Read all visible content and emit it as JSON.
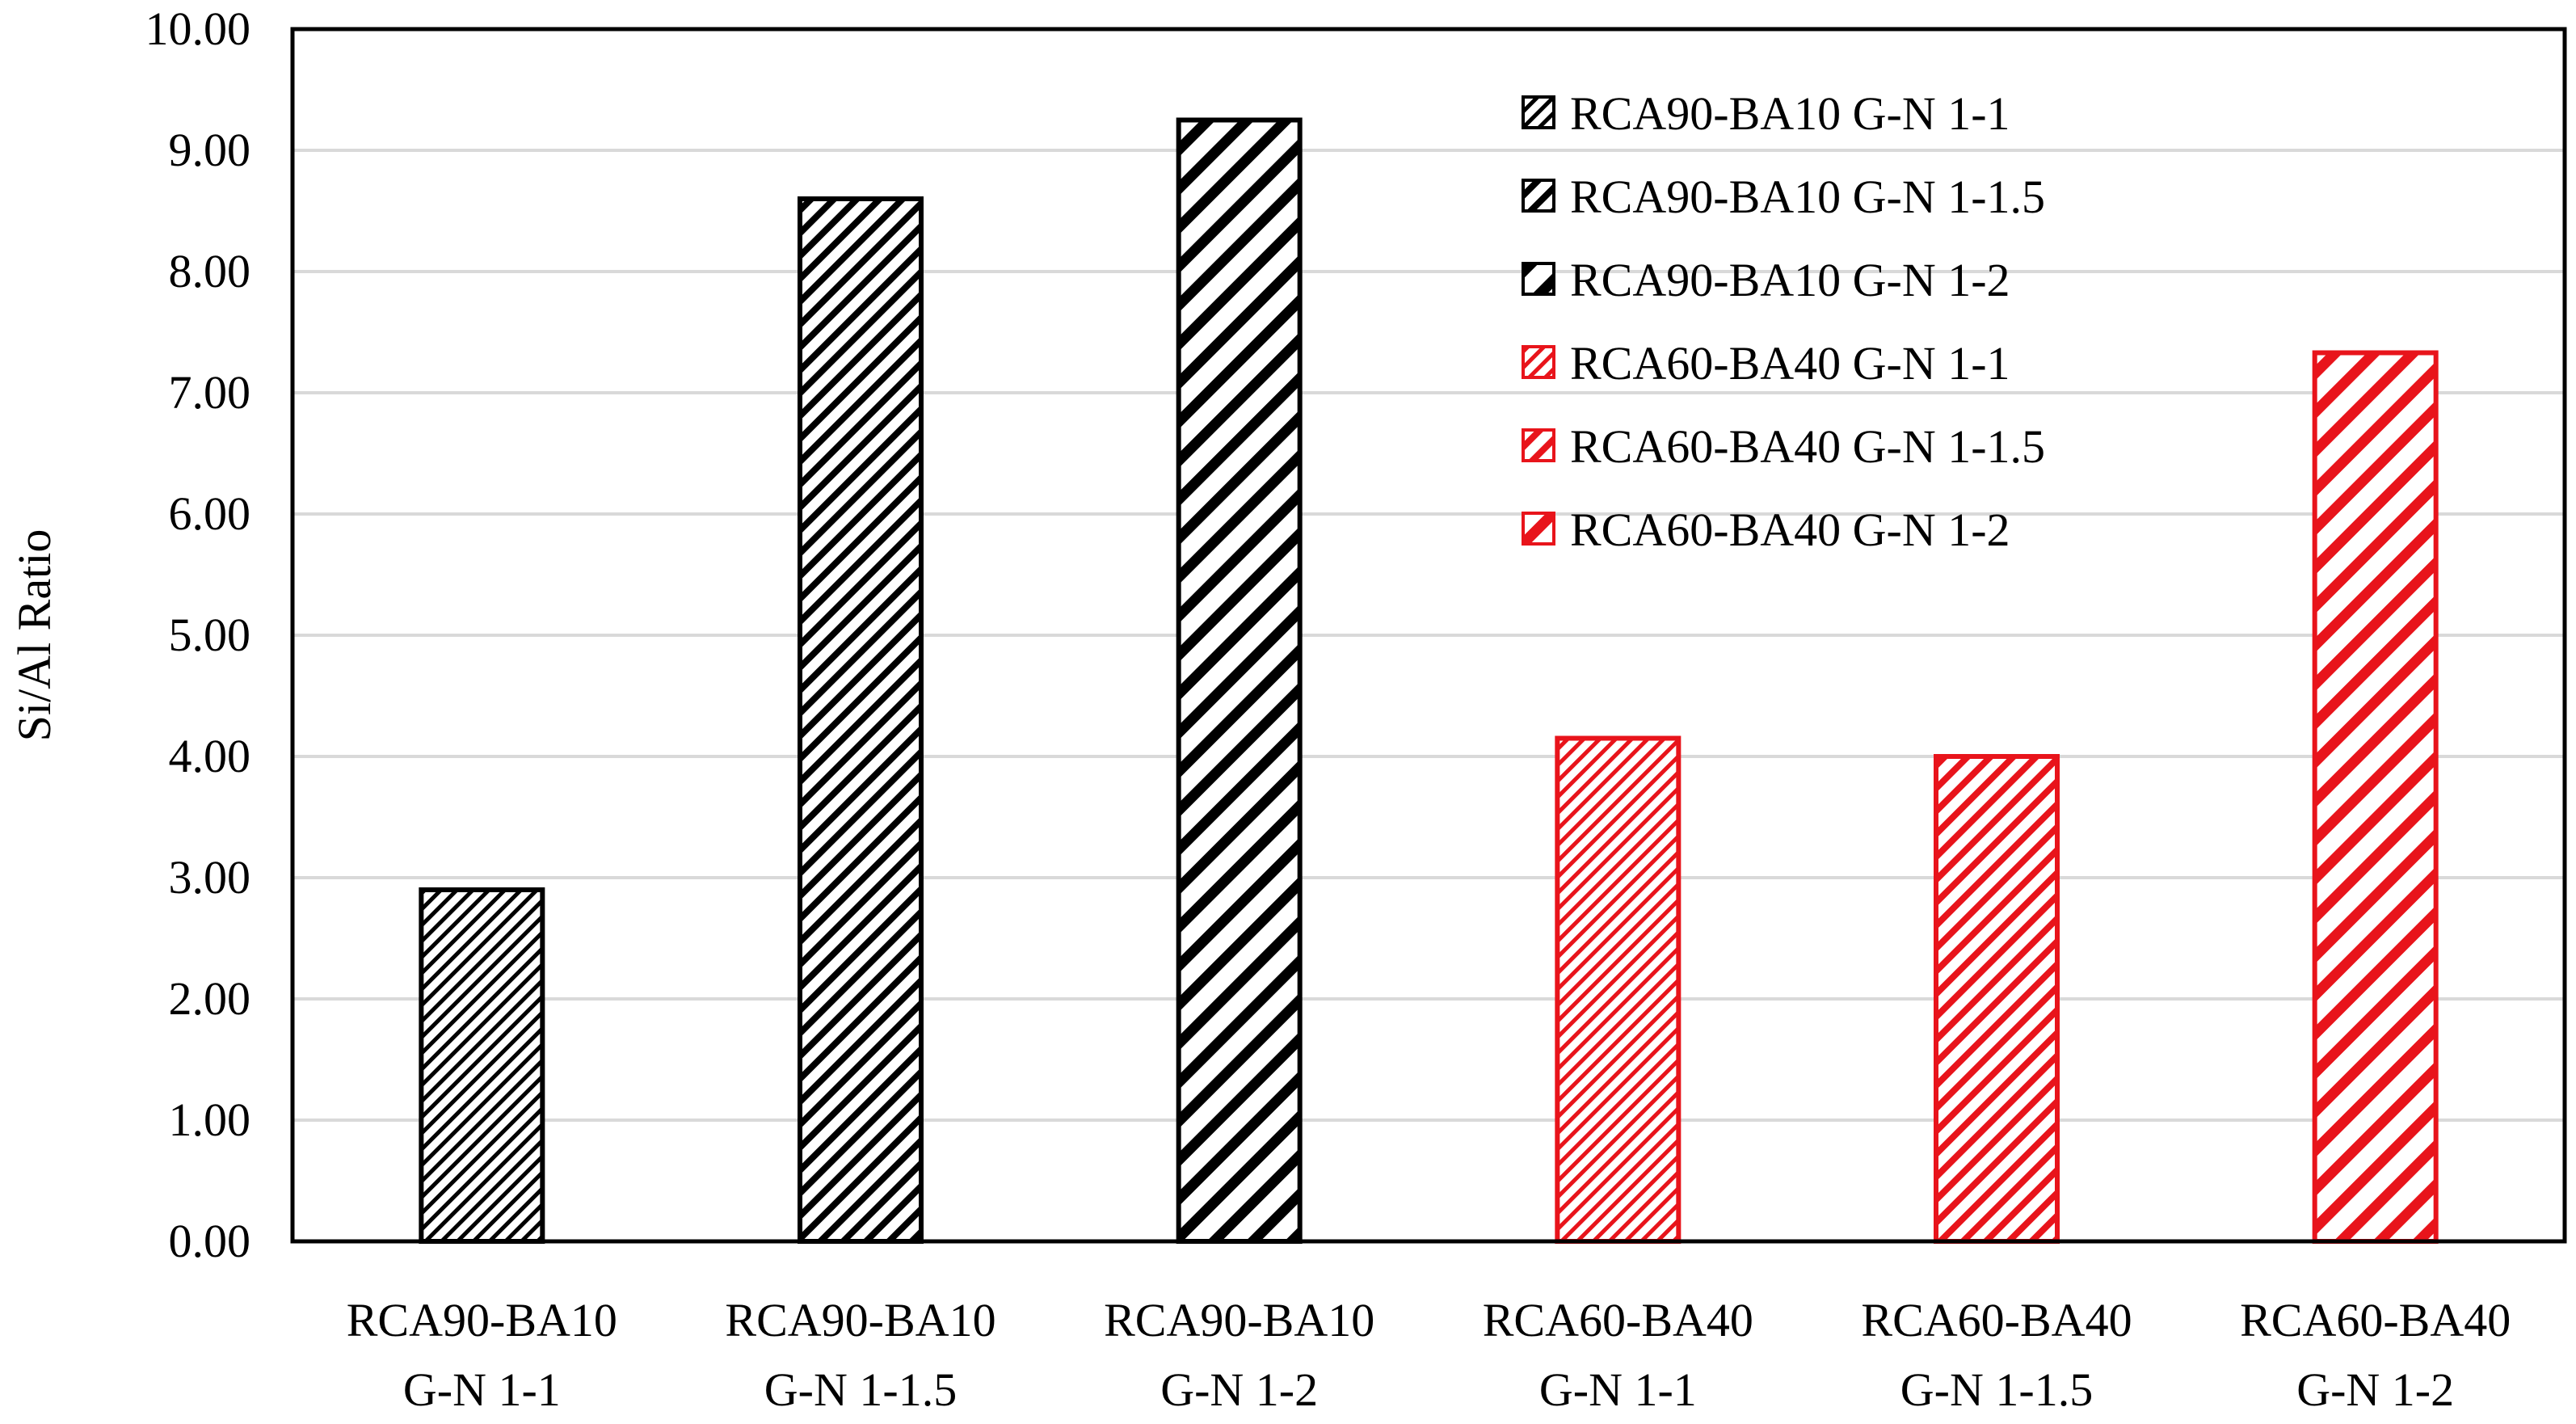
{
  "chart_data": {
    "type": "bar",
    "title": "",
    "xlabel": "",
    "ylabel": "Si/Al Ratio",
    "ylim": [
      0,
      10
    ],
    "yticks": [
      "0.00",
      "1.00",
      "2.00",
      "3.00",
      "4.00",
      "5.00",
      "6.00",
      "7.00",
      "8.00",
      "9.00",
      "10.00"
    ],
    "grid": true,
    "legend_position": "top-right",
    "categories": [
      [
        "RCA90-BA10",
        "G-N 1-1"
      ],
      [
        "RCA90-BA10",
        "G-N 1-1.5"
      ],
      [
        "RCA90-BA10",
        "G-N 1-2"
      ],
      [
        "RCA60-BA40",
        "G-N 1-1"
      ],
      [
        "RCA60-BA40",
        "G-N 1-1.5"
      ],
      [
        "RCA60-BA40",
        "G-N 1-2"
      ]
    ],
    "values": [
      2.9,
      8.6,
      9.25,
      4.15,
      4.0,
      7.33
    ],
    "series": [
      {
        "name": "RCA90-BA10 G-N 1-1",
        "value": 2.9,
        "color": "#000000"
      },
      {
        "name": "RCA90-BA10 G-N 1-1.5",
        "value": 8.6,
        "color": "#000000"
      },
      {
        "name": "RCA90-BA10 G-N 1-2",
        "value": 9.25,
        "color": "#000000"
      },
      {
        "name": "RCA60-BA40 G-N 1-1",
        "value": 4.15,
        "color": "#e8141b"
      },
      {
        "name": "RCA60-BA40 G-N 1-1.5",
        "value": 4.0,
        "color": "#e8141b"
      },
      {
        "name": "RCA60-BA40 G-N 1-2",
        "value": 7.33,
        "color": "#e8141b"
      }
    ]
  }
}
